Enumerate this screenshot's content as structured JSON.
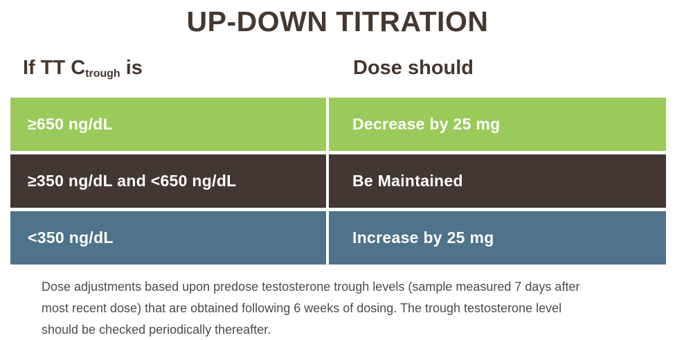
{
  "title": "UP-DOWN TITRATION",
  "colors": {
    "title_text": "#443831",
    "row_green": "#9ACA5A",
    "row_dark_brown": "#433734",
    "row_slate_blue": "#4F7389",
    "row_text": "#FFFFFF",
    "footnote_text": "#4B4B4D"
  },
  "table": {
    "col1_header": {
      "prefix": "If TT C",
      "sub": "trough",
      "suffix": " is"
    },
    "col2_header": "Dose should",
    "rows": [
      {
        "condition": "≥650 ng/dL",
        "action": "Decrease by 25 mg",
        "bg": "#9ACA5A"
      },
      {
        "condition": "≥350 ng/dL and <650 ng/dL",
        "action": "Be Maintained",
        "bg": "#433734"
      },
      {
        "condition": "<350 ng/dL",
        "action": "Increase by 25 mg",
        "bg": "#4F7389"
      }
    ]
  },
  "footnote": {
    "lines": [
      "Dose adjustments based upon predose testosterone trough levels (sample measured 7 days after",
      "most recent dose) that are obtained following 6 weeks of dosing. The trough testosterone level",
      "should be checked periodically thereafter."
    ]
  }
}
